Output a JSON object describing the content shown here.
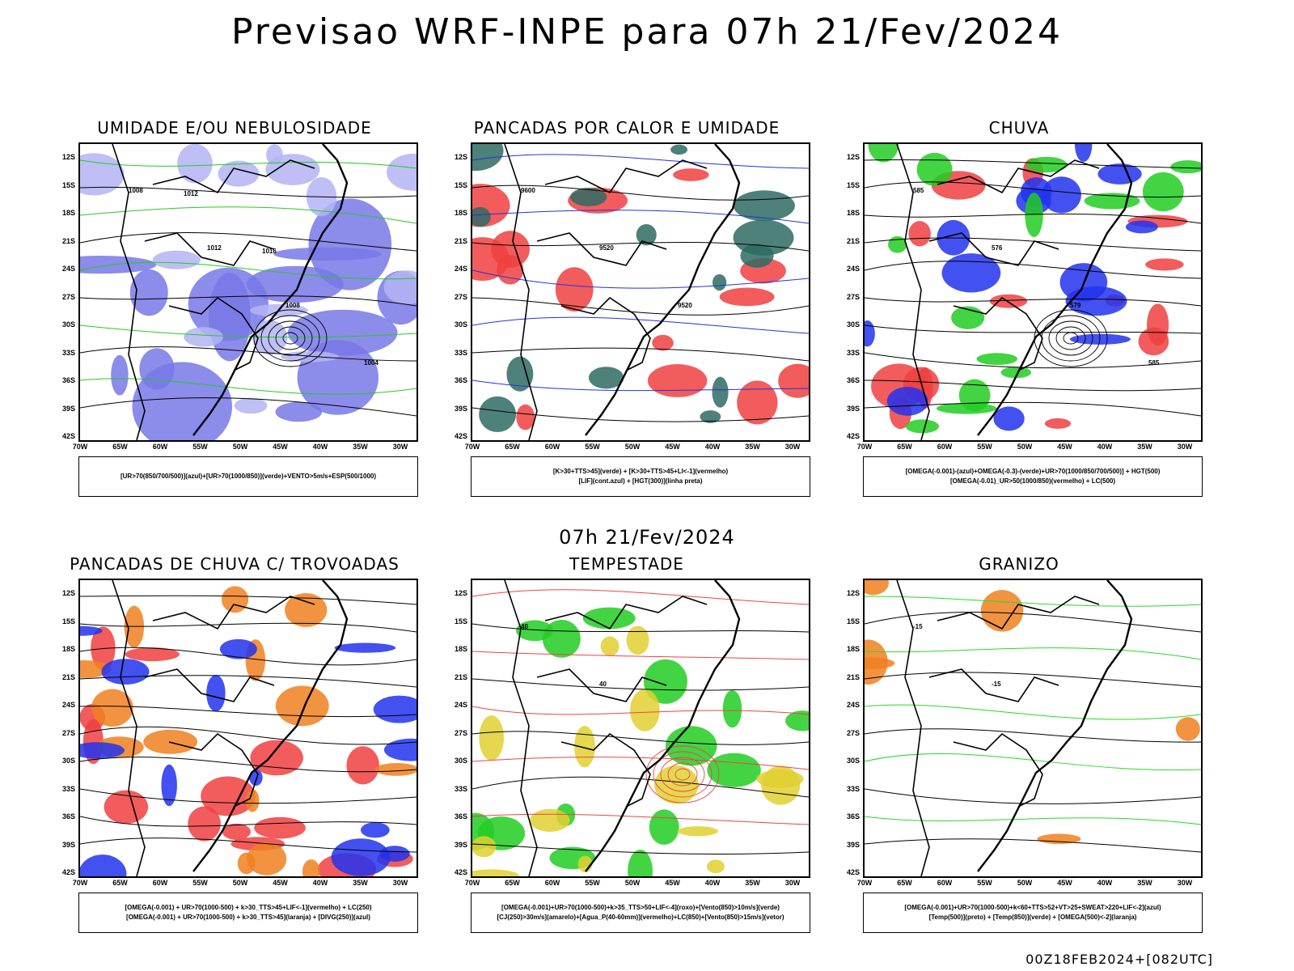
{
  "title": "Previsao WRF-INPE  para 07h 21/Fev/2024",
  "mid_date": "07h 21/Fev/2024",
  "footer": "00Z18FEB2024+[082UTC]",
  "lat_ticks": [
    "12S",
    "15S",
    "18S",
    "21S",
    "24S",
    "27S",
    "30S",
    "33S",
    "36S",
    "39S",
    "42S"
  ],
  "lon_ticks": [
    "70W",
    "65W",
    "60W",
    "55W",
    "50W",
    "45W",
    "40W",
    "35W",
    "30W"
  ],
  "panels": [
    {
      "title": "UMIDADE E/OU NEBULOSIDADE",
      "legend": [
        "[UR>70(850/700/500)](azul)+[UR>70(1000/850)](verde)+VENTO>5m/s+ESP(500/1000)"
      ],
      "contour_labels": [
        "1008",
        "1012",
        "1008",
        "1004",
        "1012",
        "1016"
      ],
      "colors": {
        "fill": "#7878e8",
        "fill2": "#b4b4f4",
        "line": "#22cc22",
        "dash": "#ee3333"
      }
    },
    {
      "title": "PANCADAS POR CALOR E UMIDADE",
      "legend": [
        "[K>30+TTS>45](verde) + [K>30+TTS>45+LI<-1](vermelho)",
        "[LIF](cont.azul) + [HGT(300)](linha preta)"
      ],
      "contour_labels": [
        "9600",
        "9520",
        "9520"
      ],
      "colors": {
        "fill": "#f04040",
        "fill2": "#2e6b63",
        "line": "#2233dd"
      }
    },
    {
      "title": "CHUVA",
      "legend": [
        "[OMEGA(-0.001)-(azul)+OMEGA(-0.3)-(verde)+UR>70(1000/850/700/500)] + HGT(500)",
        "[OMEGA(-0.01)_UR>50(1000/850)(vermelho) + LC(500)"
      ],
      "contour_labels": [
        "585",
        "576",
        "579",
        "585"
      ],
      "colors": {
        "fill": "#f04040",
        "fill2": "#2233ee",
        "fill3": "#22cc22"
      }
    },
    {
      "title": "PANCADAS DE CHUVA C/ TROVOADAS",
      "legend": [
        "[OMEGA(-0.001) + UR>70(1000-500) + k>30_TTS>45+LIF<-1](vermelho) + LC(250)",
        "[OMEGA(-0.001) + UR>70(1000-500) + k>30_TTS>45](laranja) + [DIVG(250)](azul)"
      ],
      "contour_labels": [],
      "colors": {
        "fill": "#f04040",
        "fill2": "#f08020",
        "fill3": "#2233ee"
      }
    },
    {
      "title": "TEMPESTADE",
      "legend": [
        "[OMEGA(-0.001)+UR>70(1000-500)+k>35_TTS>50+LIF<-4](roxo)+[Vento(850)>10m/s](verde)",
        "[CJ(250)>30m/s](amarelo)+[Agua_P(40-60mm)](vermelho)+LC(850)+[Vento(850)>15m/s](vetor)"
      ],
      "contour_labels": [
        "40",
        "40"
      ],
      "colors": {
        "fill": "#22cc22",
        "fill2": "#e0d030",
        "line": "#ee4444"
      }
    },
    {
      "title": "GRANIZO",
      "legend": [
        "[OMEGA(-0.001)+UR>70(1000-500)+k<60+TTS>52+VT>25+SWEAT>220+LIF<-2](azul)",
        "[Temp(500)](preto) + [Temp(850)](verde) + [OMEGA(500)<-2](laranja)"
      ],
      "contour_labels": [
        "-15",
        "-15"
      ],
      "colors": {
        "line": "#22dd22",
        "fill": "#f08020"
      }
    }
  ]
}
